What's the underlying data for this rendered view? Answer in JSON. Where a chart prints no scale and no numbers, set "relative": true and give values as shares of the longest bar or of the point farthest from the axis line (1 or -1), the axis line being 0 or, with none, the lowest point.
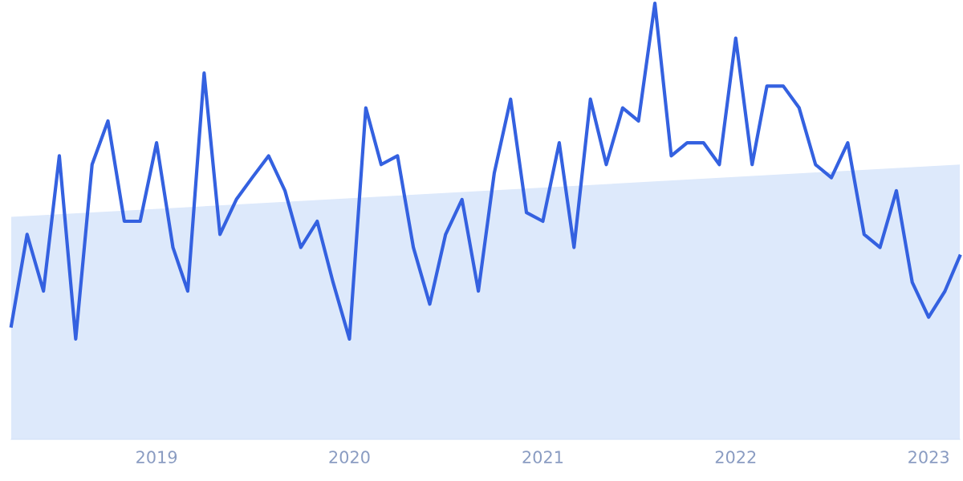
{
  "chart_data": {
    "type": "line",
    "relative": true,
    "x": [
      "2018-04",
      "2018-05",
      "2018-06",
      "2018-07",
      "2018-08",
      "2018-09",
      "2018-10",
      "2018-11",
      "2018-12",
      "2019-01",
      "2019-02",
      "2019-03",
      "2019-04",
      "2019-05",
      "2019-06",
      "2019-07",
      "2019-08",
      "2019-09",
      "2019-10",
      "2019-11",
      "2019-12",
      "2020-01",
      "2020-02",
      "2020-03",
      "2020-04",
      "2020-05",
      "2020-06",
      "2020-07",
      "2020-08",
      "2020-09",
      "2020-10",
      "2020-11",
      "2020-12",
      "2021-01",
      "2021-02",
      "2021-03",
      "2021-04",
      "2021-05",
      "2021-06",
      "2021-07",
      "2021-08",
      "2021-09",
      "2021-10",
      "2021-11",
      "2021-12",
      "2022-01",
      "2022-02",
      "2022-03",
      "2022-04",
      "2022-05",
      "2022-06",
      "2022-07",
      "2022-08",
      "2022-09",
      "2022-10",
      "2022-11",
      "2022-12",
      "2023-01",
      "2023-02",
      "2023-03"
    ],
    "series": [
      {
        "type": "area",
        "color": "#dde9fb",
        "x": [
          "2018-04",
          "2023-03"
        ],
        "values": [
          0.51,
          0.63
        ]
      },
      {
        "color": "#3461e0",
        "values": [
          0.26,
          0.47,
          0.34,
          0.65,
          0.23,
          0.63,
          0.73,
          0.5,
          0.5,
          0.68,
          0.44,
          0.34,
          0.84,
          0.47,
          0.55,
          0.6,
          0.65,
          0.57,
          0.44,
          0.5,
          0.36,
          0.23,
          0.76,
          0.63,
          0.65,
          0.44,
          0.31,
          0.47,
          0.55,
          0.34,
          0.61,
          0.78,
          0.52,
          0.5,
          0.68,
          0.44,
          0.78,
          0.63,
          0.76,
          0.73,
          1,
          0.65,
          0.68,
          0.68,
          0.63,
          0.92,
          0.63,
          0.81,
          0.81,
          0.76,
          0.63,
          0.6,
          0.68,
          0.47,
          0.44,
          0.57,
          0.36,
          0.28,
          0.34,
          0.42
        ]
      }
    ],
    "xlim": [
      "2018-04",
      "2023-03"
    ],
    "xticks": [
      "2019",
      "2020",
      "2021",
      "2022",
      "2023"
    ],
    "tick_labels": "x",
    "marker": "none",
    "line_style": "solid",
    "legend": false
  }
}
